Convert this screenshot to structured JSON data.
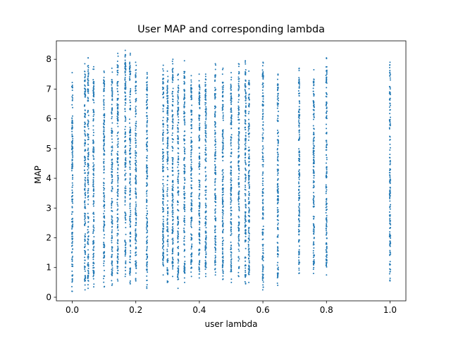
{
  "chart_data": {
    "type": "scatter",
    "title": "User MAP and corresponding lambda",
    "xlabel": "user lambda",
    "ylabel": "MAP",
    "xlim": [
      -0.05,
      1.05
    ],
    "ylim": [
      -0.12,
      8.62
    ],
    "xticks": [
      0.0,
      0.2,
      0.4,
      0.6,
      0.8,
      1.0
    ],
    "xtick_labels": [
      "0.0",
      "0.2",
      "0.4",
      "0.6",
      "0.8",
      "1.0"
    ],
    "yticks": [
      0,
      1,
      2,
      3,
      4,
      5,
      6,
      7,
      8
    ],
    "ytick_labels": [
      "0",
      "1",
      "2",
      "3",
      "4",
      "5",
      "6",
      "7",
      "8"
    ],
    "grid": false,
    "legend": null,
    "marker_color": "#1f77b4",
    "series": [
      {
        "columns": [
          {
            "x": 0.0,
            "ymin": 0.2,
            "ymax": 7.55
          },
          {
            "x": 0.04,
            "ymin": 0.25,
            "ymax": 7.85
          },
          {
            "x": 0.05,
            "ymin": 0.3,
            "ymax": 8.05
          },
          {
            "x": 0.067,
            "ymin": 0.35,
            "ymax": 7.75
          },
          {
            "x": 0.1,
            "ymin": 0.35,
            "ymax": 7.6
          },
          {
            "x": 0.125,
            "ymin": 0.4,
            "ymax": 7.7
          },
          {
            "x": 0.143,
            "ymin": 0.55,
            "ymax": 8.2
          },
          {
            "x": 0.167,
            "ymin": 0.7,
            "ymax": 8.3
          },
          {
            "x": 0.182,
            "ymin": 0.45,
            "ymax": 8.2
          },
          {
            "x": 0.2,
            "ymin": 0.55,
            "ymax": 7.9
          },
          {
            "x": 0.235,
            "ymin": 0.3,
            "ymax": 7.55
          },
          {
            "x": 0.286,
            "ymin": 0.75,
            "ymax": 7.8
          },
          {
            "x": 0.3,
            "ymin": 0.5,
            "ymax": 7.6
          },
          {
            "x": 0.316,
            "ymin": 0.7,
            "ymax": 8.0
          },
          {
            "x": 0.333,
            "ymin": 0.3,
            "ymax": 7.5
          },
          {
            "x": 0.353,
            "ymin": 0.5,
            "ymax": 7.95
          },
          {
            "x": 0.375,
            "ymin": 0.7,
            "ymax": 7.45
          },
          {
            "x": 0.4,
            "ymin": 0.65,
            "ymax": 7.5
          },
          {
            "x": 0.42,
            "ymin": 0.7,
            "ymax": 7.5
          },
          {
            "x": 0.45,
            "ymin": 0.75,
            "ymax": 7.85
          },
          {
            "x": 0.474,
            "ymin": 0.6,
            "ymax": 7.7
          },
          {
            "x": 0.5,
            "ymin": 0.5,
            "ymax": 7.55
          },
          {
            "x": 0.524,
            "ymin": 0.7,
            "ymax": 7.85
          },
          {
            "x": 0.545,
            "ymin": 0.45,
            "ymax": 7.95
          },
          {
            "x": 0.556,
            "ymin": 0.5,
            "ymax": 7.6
          },
          {
            "x": 0.6,
            "ymin": 0.25,
            "ymax": 7.9
          },
          {
            "x": 0.647,
            "ymin": 0.4,
            "ymax": 7.5
          },
          {
            "x": 0.714,
            "ymin": 0.8,
            "ymax": 7.7
          },
          {
            "x": 0.76,
            "ymin": 0.8,
            "ymax": 7.65
          },
          {
            "x": 0.8,
            "ymin": 0.75,
            "ymax": 8.05
          },
          {
            "x": 1.0,
            "ymin": 0.55,
            "ymax": 7.9
          }
        ]
      }
    ]
  }
}
